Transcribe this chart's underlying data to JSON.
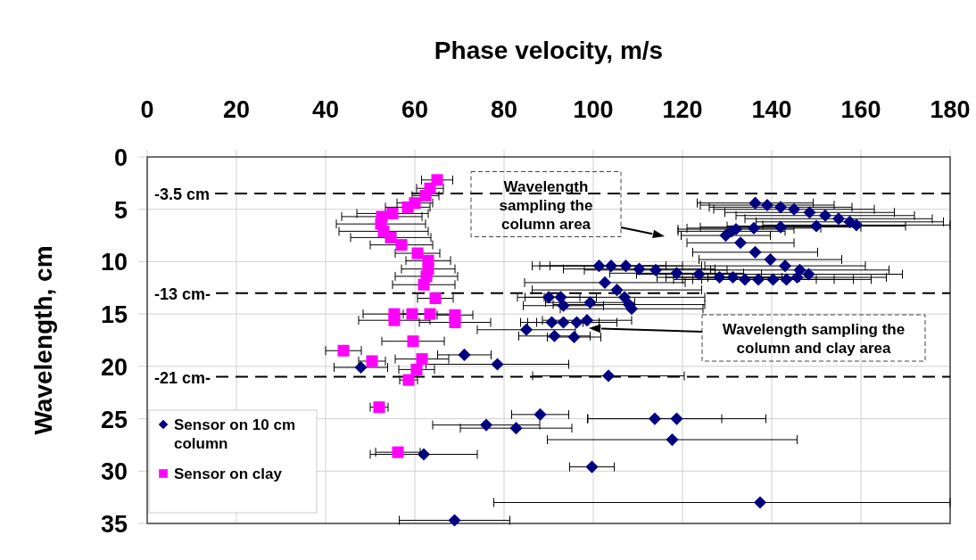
{
  "chart_data": {
    "type": "scatter",
    "xlabel": "Phase velocity, m/s",
    "ylabel": "Wavelength, cm",
    "xlim": [
      0,
      180
    ],
    "xticks": [
      0,
      20,
      40,
      60,
      80,
      100,
      120,
      140,
      160,
      180
    ],
    "ylim": [
      35,
      0
    ],
    "yticks": [
      0,
      5,
      10,
      15,
      20,
      25,
      30,
      35
    ],
    "grid": true,
    "legend": "bottom left",
    "ref_lines": [
      {
        "axis": "y",
        "value": 3.5,
        "label": "-3.5 cm",
        "line_style": "dashed",
        "color": "#000000"
      },
      {
        "axis": "y",
        "value": 13,
        "label": "-13 cm-",
        "line_style": "dashed",
        "color": "#000000"
      },
      {
        "axis": "y",
        "value": 21,
        "label": "-21 cm-",
        "line_style": "dashed",
        "color": "#000000"
      }
    ],
    "annotations": [
      "Wavelength sampling the column area",
      "Wavelength sampling the column and clay area"
    ],
    "series": [
      {
        "name": "Sensor on 10 cm column",
        "color": "#000080",
        "marker": "diamond",
        "x": [
          136.3,
          139,
          142,
          145,
          148.5,
          152,
          155,
          157.5,
          159,
          150,
          142,
          136,
          132,
          131,
          129.7,
          133,
          136.3,
          139.7,
          143,
          146.3,
          148.3,
          145.7,
          143.3,
          140.3,
          137,
          134,
          131.3,
          128.3,
          123.7,
          118.7,
          114,
          110.3,
          107.3,
          104,
          101.3,
          102.6,
          105.3,
          107,
          108,
          108.6,
          90,
          92.7,
          93.3,
          99.3,
          90.7,
          93.3,
          96.3,
          98.6,
          85,
          91.3,
          95.7,
          71.1,
          78.5,
          47.9,
          103.4,
          88.1,
          113.8,
          118.7,
          76,
          82.7,
          117.7,
          62,
          99.7,
          137.4,
          68.9
        ],
        "values": [
          4.4,
          4.6,
          4.8,
          5.0,
          5.3,
          5.6,
          5.9,
          6.2,
          6.5,
          6.6,
          6.7,
          6.8,
          6.9,
          7.1,
          7.5,
          8.2,
          9.1,
          9.8,
          10.4,
          10.8,
          11.2,
          11.5,
          11.7,
          11.7,
          11.7,
          11.7,
          11.5,
          11.5,
          11.2,
          11.1,
          10.8,
          10.7,
          10.4,
          10.4,
          10.4,
          12.0,
          12.7,
          13.4,
          14.1,
          14.5,
          13.4,
          13.4,
          14.2,
          13.9,
          15.8,
          15.8,
          15.8,
          15.6,
          16.5,
          17.1,
          17.2,
          18.9,
          19.8,
          20.1,
          20.9,
          24.6,
          25.0,
          25.0,
          25.6,
          25.9,
          27.0,
          28.4,
          29.6,
          33.0,
          34.7
        ],
        "xerrors": [
          13,
          15,
          16,
          18,
          19,
          20,
          21,
          21,
          21,
          20,
          18,
          15,
          13,
          12,
          10,
          12,
          14,
          16,
          18,
          20,
          21,
          20,
          19,
          18,
          17,
          16,
          15,
          14,
          14,
          15,
          16,
          17,
          17,
          16,
          15,
          18,
          19,
          18,
          17,
          16,
          7,
          8,
          9,
          10,
          7,
          8,
          9,
          10,
          11,
          8,
          6,
          6,
          16,
          6,
          17,
          6.4,
          15,
          20,
          12,
          12.5,
          28,
          12,
          5,
          [
            77.7,
            180
          ],
          12.4
        ]
      },
      {
        "name": "Sensor on clay",
        "color": "#ff00ff",
        "marker": "square",
        "x": [
          65,
          63.4,
          62.4,
          60,
          58.4,
          55,
          52.6,
          52.4,
          53,
          54.6,
          57,
          60.6,
          63,
          63,
          62.6,
          62,
          64.6,
          55.4,
          59.4,
          63.4,
          69,
          55.4,
          69,
          59.6,
          44,
          50.4,
          61.6,
          60.4,
          58.6,
          52,
          56.2
        ],
        "values": [
          2.2,
          3.0,
          3.7,
          4.4,
          4.8,
          5.4,
          5.7,
          6.4,
          7.1,
          7.7,
          8.4,
          9.2,
          9.9,
          10.7,
          11.4,
          12.2,
          13.5,
          15.0,
          15.0,
          15.0,
          15.1,
          15.6,
          15.8,
          17.6,
          18.5,
          19.5,
          19.3,
          20.3,
          21.3,
          23.9,
          28.2
        ],
        "xerrors": [
          3.5,
          3,
          3,
          4,
          5,
          8,
          9,
          10,
          10,
          9,
          7,
          5,
          5,
          6,
          7,
          7,
          4,
          7,
          5,
          6,
          4,
          8,
          8,
          7,
          4,
          3,
          6,
          4,
          2,
          2,
          5
        ]
      }
    ]
  }
}
